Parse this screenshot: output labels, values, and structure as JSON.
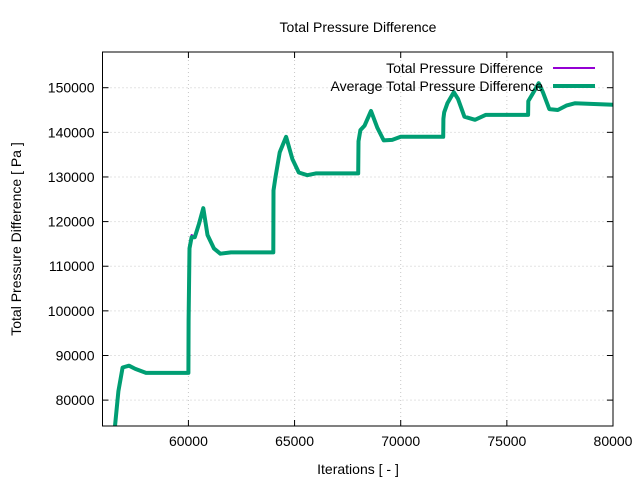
{
  "chart_data": {
    "type": "line",
    "title": "Total Pressure Difference",
    "xlabel": "Iterations [ - ]",
    "ylabel": "Total Pressure Difference [ Pa ]",
    "xlim": [
      55953,
      80000
    ],
    "ylim": [
      74200,
      158000
    ],
    "xticks": [
      60000,
      65000,
      70000,
      75000,
      80000
    ],
    "yticks": [
      80000,
      90000,
      100000,
      110000,
      120000,
      130000,
      140000,
      150000
    ],
    "grid": true,
    "legend_position": "top-right",
    "series": [
      {
        "name": "Total Pressure Difference",
        "color": "#9400d3",
        "x": [
          56540,
          56700,
          56900,
          57200,
          57500,
          58000,
          59000,
          60000,
          60010,
          60050,
          60150,
          60300,
          60500,
          60700,
          60900,
          61200,
          61500,
          62000,
          64000,
          64010,
          64100,
          64300,
          64600,
          64900,
          65200,
          65600,
          66000,
          68000,
          68010,
          68100,
          68300,
          68600,
          68900,
          69200,
          69600,
          70000,
          72000,
          72010,
          72050,
          72200,
          72500,
          72700,
          73000,
          73500,
          74000,
          76000,
          76010,
          76200,
          76500,
          76700,
          77000,
          77400,
          77800,
          78200,
          80000
        ],
        "y": [
          74200,
          82000,
          87300,
          87700,
          87000,
          86100,
          86100,
          86100,
          98000,
          115000,
          117000,
          116500,
          119500,
          123000,
          117000,
          114000,
          112800,
          113100,
          113100,
          126000,
          130000,
          136000,
          139000,
          134000,
          131000,
          130400,
          130800,
          130800,
          138000,
          140500,
          141500,
          144800,
          141000,
          138200,
          138300,
          139000,
          139000,
          143000,
          145000,
          146500,
          149000,
          147500,
          143500,
          142800,
          143900,
          143900,
          147000,
          148500,
          151000,
          149000,
          145200,
          145000,
          146000,
          146500,
          146200
        ]
      },
      {
        "name": "Average Total Pressure Difference",
        "color": "#009e73",
        "x": [
          56540,
          56700,
          56900,
          57200,
          57500,
          58000,
          59000,
          60000,
          60010,
          60050,
          60150,
          60300,
          60500,
          60700,
          60900,
          61200,
          61500,
          62000,
          64000,
          64010,
          64100,
          64300,
          64600,
          64900,
          65200,
          65600,
          66000,
          68000,
          68010,
          68100,
          68300,
          68600,
          68900,
          69200,
          69600,
          70000,
          72000,
          72010,
          72050,
          72200,
          72500,
          72700,
          73000,
          73500,
          74000,
          76000,
          76010,
          76200,
          76500,
          76700,
          77000,
          77400,
          77800,
          78200,
          80000
        ],
        "y": [
          74200,
          82000,
          87300,
          87700,
          87000,
          86100,
          86100,
          86100,
          98000,
          114000,
          116500,
          116500,
          119500,
          123000,
          117000,
          114000,
          112800,
          113100,
          113100,
          127000,
          130000,
          135500,
          139000,
          134000,
          131000,
          130400,
          130800,
          130800,
          138000,
          140500,
          141500,
          144800,
          141000,
          138200,
          138300,
          139000,
          139000,
          143000,
          144500,
          146500,
          149000,
          147500,
          143500,
          142800,
          143900,
          143900,
          147000,
          148500,
          151000,
          149000,
          145200,
          145000,
          146000,
          146500,
          146200
        ]
      }
    ]
  }
}
